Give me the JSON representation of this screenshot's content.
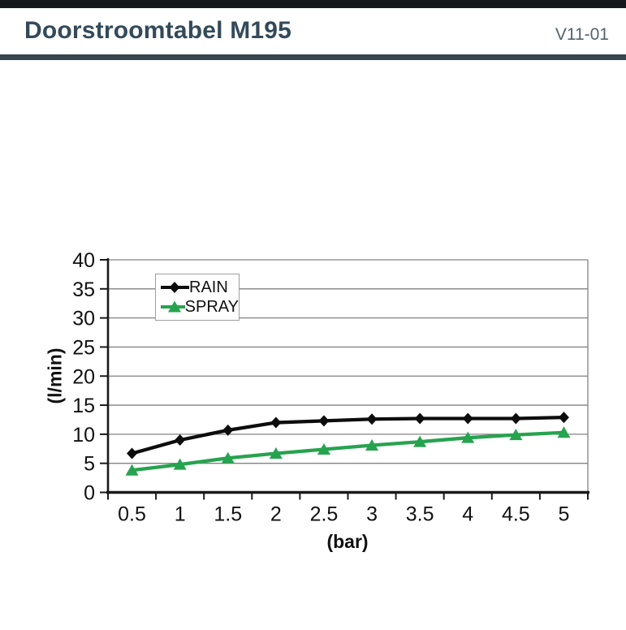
{
  "header": {
    "title": "Doorstroomtabel M195",
    "version": "V11-01"
  },
  "theme": {
    "topbar_color": "#15191d",
    "divider_color": "#36454e",
    "title_color": "#334a5a",
    "version_color": "#54646f"
  },
  "chart_data": {
    "type": "line",
    "title": "",
    "x": [
      "0.5",
      "1",
      "1.5",
      "2",
      "2.5",
      "3",
      "3.5",
      "4",
      "4.5",
      "5"
    ],
    "yticks": [
      "0",
      "5",
      "10",
      "15",
      "20",
      "25",
      "30",
      "35",
      "40"
    ],
    "series": [
      {
        "name": "RAIN",
        "marker": "diamond",
        "color": "#0d0d0d",
        "values": [
          6.7,
          9.0,
          10.7,
          12.0,
          12.3,
          12.6,
          12.7,
          12.7,
          12.7,
          12.9
        ]
      },
      {
        "name": "SPRAY",
        "marker": "triangle",
        "color": "#26a34f",
        "values": [
          3.8,
          4.8,
          5.9,
          6.7,
          7.4,
          8.1,
          8.7,
          9.4,
          9.9,
          10.3
        ]
      }
    ],
    "xlabel": "(bar)",
    "ylabel": "(l/min)",
    "ylim": [
      0,
      40
    ],
    "ytick_step": 5,
    "grid": "horizontal",
    "legend_position": "top-left-inside",
    "colors": {
      "grid": "#828282",
      "axis": "#1a1a1a"
    }
  }
}
